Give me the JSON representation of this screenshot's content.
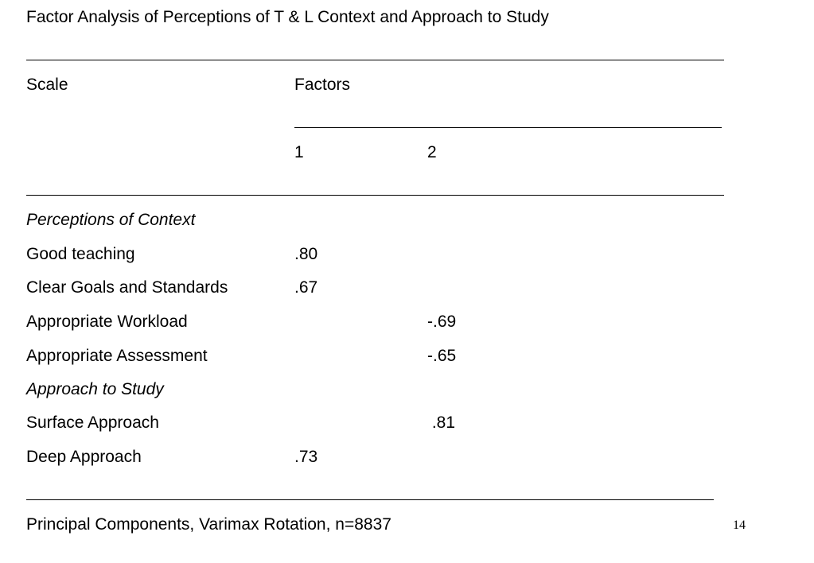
{
  "title": "Factor Analysis of Perceptions of T & L Context and Approach to Study",
  "table": {
    "scale_header": "Scale",
    "factors_header": "Factors",
    "factor_columns": [
      "1",
      "2"
    ],
    "rows": [
      {
        "label": "Perceptions of Context",
        "section": true,
        "f1": "",
        "f2": ""
      },
      {
        "label": "Good teaching",
        "section": false,
        "f1": ".80",
        "f2": ""
      },
      {
        "label": "Clear Goals and Standards",
        "section": false,
        "f1": ".67",
        "f2": ""
      },
      {
        "label": "Appropriate Workload",
        "section": false,
        "f1": "",
        "f2": "-.69"
      },
      {
        "label": "Appropriate Assessment",
        "section": false,
        "f1": "",
        "f2": "-.65"
      },
      {
        "label": "Approach to Study",
        "section": true,
        "f1": "",
        "f2": ""
      },
      {
        "label": "Surface Approach",
        "section": false,
        "f1": "",
        "f2": " .81"
      },
      {
        "label": "Deep Approach",
        "section": false,
        "f1": ".73",
        "f2": ""
      }
    ]
  },
  "footnote": "Principal Components, Varimax Rotation, n=8837",
  "slide_number": "14"
}
